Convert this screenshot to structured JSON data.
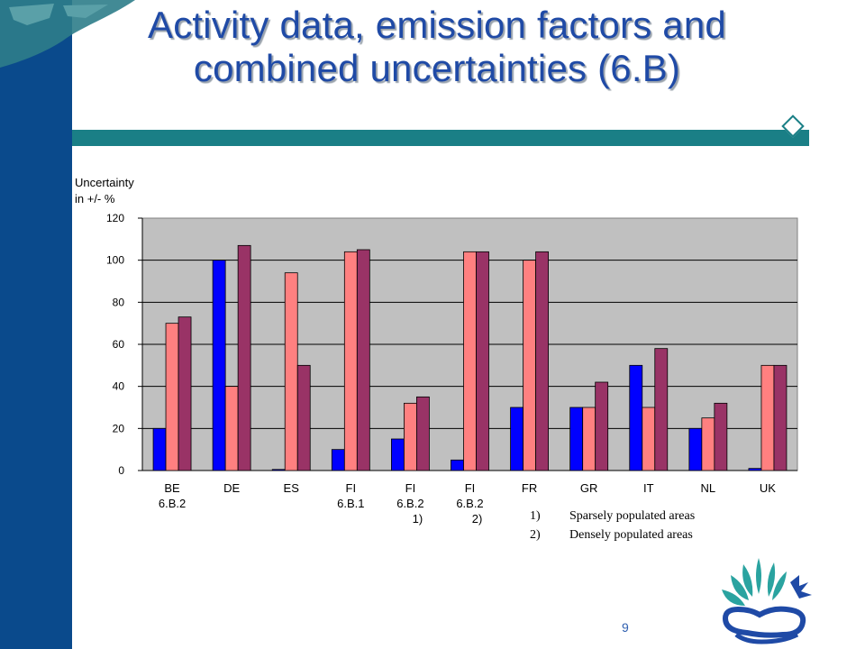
{
  "slide": {
    "title_line1": "Activity data, emission factors and",
    "title_line2": "combined uncertainties (6.B)",
    "page_number": "9",
    "footnotes": [
      {
        "num": "1)",
        "text": "Sparsely populated areas"
      },
      {
        "num": "2)",
        "text": "Densely populated areas"
      }
    ],
    "colors": {
      "left_bar": "#0a4a8c",
      "title": "#1f4aa6",
      "rule": "#1a7f86"
    }
  },
  "chart_data": {
    "type": "bar",
    "ylabel": [
      "Uncertainty",
      "in +/-  %"
    ],
    "ylim": [
      0,
      120
    ],
    "yticks": [
      0,
      20,
      40,
      60,
      80,
      100,
      120
    ],
    "grid": true,
    "plot_background": "#c0c0c0",
    "categories": [
      [
        "BE",
        "6.B.2"
      ],
      [
        "DE"
      ],
      [
        "ES"
      ],
      [
        "FI",
        "6.B.1"
      ],
      [
        "FI",
        "6.B.2",
        "1)"
      ],
      [
        "FI",
        "6.B.2",
        "2)"
      ],
      [
        "FR"
      ],
      [
        "GR"
      ],
      [
        "IT"
      ],
      [
        "NL"
      ],
      [
        "UK"
      ]
    ],
    "series": [
      {
        "color": "#0000ff",
        "values": [
          20,
          100,
          0.5,
          10,
          15,
          5,
          30,
          30,
          50,
          20,
          1
        ]
      },
      {
        "color": "#ff8080",
        "values": [
          70,
          40,
          94,
          104,
          32,
          104,
          100,
          30,
          30,
          25,
          50
        ]
      },
      {
        "color": "#993366",
        "values": [
          73,
          107,
          50,
          105,
          35,
          104,
          104,
          42,
          58,
          32,
          50
        ]
      }
    ]
  }
}
